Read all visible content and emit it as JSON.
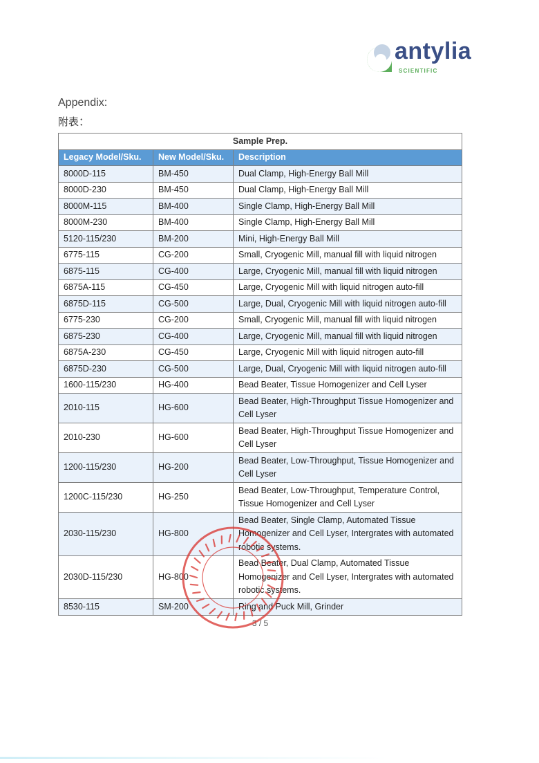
{
  "logo": {
    "name": "antylia",
    "sub": "SCIENTIFIC",
    "colors": {
      "green": "#5cae5b",
      "blue": "#3a4f86"
    }
  },
  "heading": "Appendix:",
  "heading_cn": "附表：",
  "table": {
    "title": "Sample Prep.",
    "columns": [
      "Legacy Model/Sku.",
      "New Model/Sku.",
      "Description"
    ],
    "header_color": "#5b9bd5",
    "rows": [
      [
        "8000D-115",
        "BM-450",
        "Dual Clamp, High-Energy Ball Mill"
      ],
      [
        "8000D-230",
        "BM-450",
        "Dual Clamp, High-Energy Ball Mill"
      ],
      [
        "8000M-115",
        "BM-400",
        "Single Clamp, High-Energy Ball Mill"
      ],
      [
        "8000M-230",
        "BM-400",
        "Single Clamp, High-Energy Ball Mill"
      ],
      [
        "5120-115/230",
        "BM-200",
        "Mini, High-Energy Ball Mill"
      ],
      [
        "6775-115",
        "CG-200",
        "Small, Cryogenic Mill, manual fill with liquid nitrogen"
      ],
      [
        "6875-115",
        "CG-400",
        "Large, Cryogenic Mill, manual fill with liquid nitrogen"
      ],
      [
        "6875A-115",
        "CG-450",
        "Large, Cryogenic Mill with liquid nitrogen auto-fill"
      ],
      [
        "6875D-115",
        "CG-500",
        "Large, Dual, Cryogenic Mill with liquid nitrogen auto-fill"
      ],
      [
        "6775-230",
        "CG-200",
        "Small, Cryogenic Mill, manual fill with liquid nitrogen"
      ],
      [
        "6875-230",
        "CG-400",
        "Large, Cryogenic Mill, manual fill with liquid nitrogen"
      ],
      [
        "6875A-230",
        "CG-450",
        "Large, Cryogenic Mill with liquid nitrogen auto-fill"
      ],
      [
        "6875D-230",
        "CG-500",
        "Large, Dual, Cryogenic Mill with liquid nitrogen auto-fill"
      ],
      [
        "1600-115/230",
        "HG-400",
        "Bead Beater, Tissue Homogenizer and Cell Lyser"
      ],
      [
        "2010-115",
        "HG-600",
        "Bead Beater, High-Throughput Tissue Homogenizer and Cell Lyser"
      ],
      [
        "2010-230",
        "HG-600",
        "Bead Beater, High-Throughput Tissue Homogenizer and Cell Lyser"
      ],
      [
        "1200-115/230",
        "HG-200",
        "Bead Beater, Low-Throughput, Tissue Homogenizer and Cell Lyser"
      ],
      [
        "1200C-115/230",
        "HG-250",
        "Bead Beater, Low-Throughput, Temperature Control, Tissue Homogenizer and Cell Lyser"
      ],
      [
        "2030-115/230",
        "HG-800",
        "Bead Beater, Single Clamp, Automated Tissue Homogenizer and Cell Lyser, Intergrates with automated robotic systems."
      ],
      [
        "2030D-115/230",
        "HG-800",
        "Bead Beater, Dual Clamp, Automated Tissue Homogenizer and Cell Lyser, Intergrates with automated robotic systems."
      ],
      [
        "8530-115",
        "SM-200",
        "Ring and Puck Mill, Grinder"
      ]
    ]
  },
  "stamp": {
    "text": "Cole-Parmer Instrument (Shanghai) Co., Ltd. 科尔帕默仪器(上海)有限公司",
    "color": "#d9332e"
  },
  "page_number": "3 / 5"
}
